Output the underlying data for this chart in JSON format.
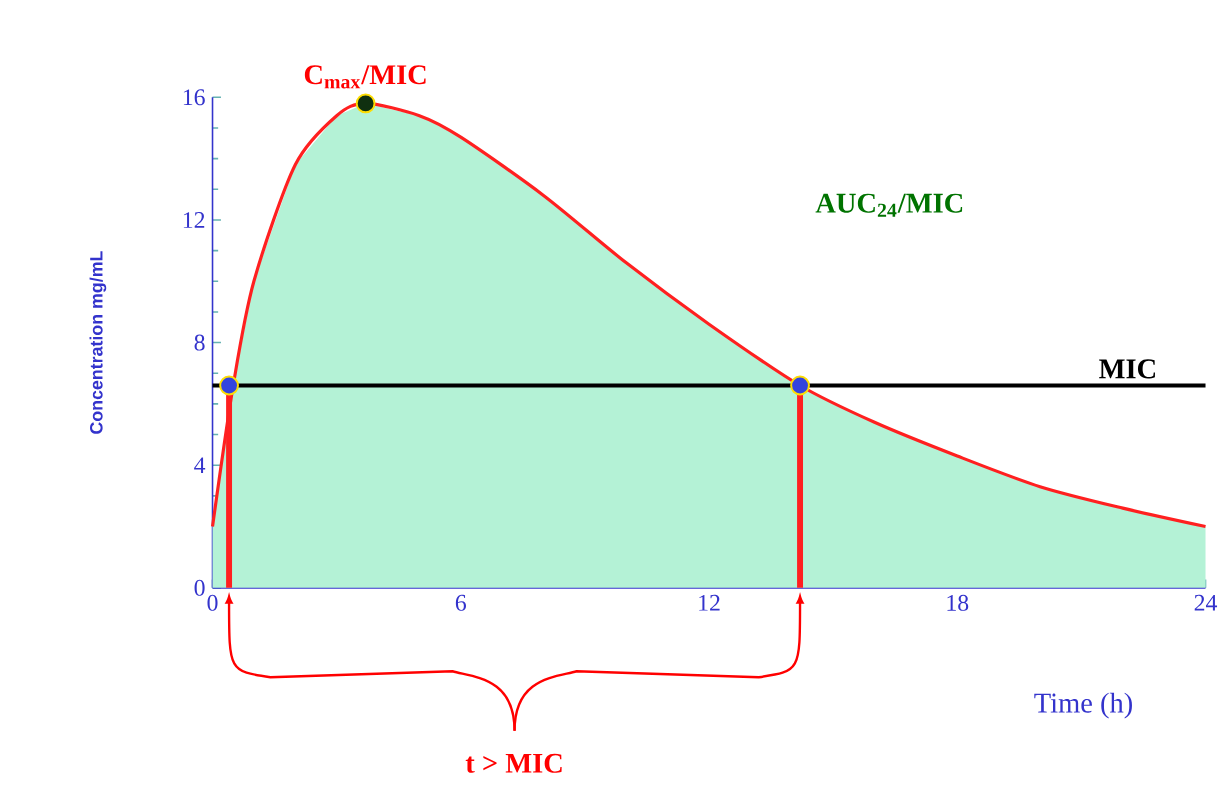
{
  "chart_data": {
    "type": "area",
    "xlabel": "Time (h)",
    "ylabel": "Concentration mg/mL",
    "xlim": [
      0,
      24
    ],
    "ylim": [
      0,
      16
    ],
    "xticks": [
      0,
      6,
      12,
      18,
      24
    ],
    "yticks": [
      0,
      4,
      8,
      12,
      16
    ],
    "series": [
      {
        "color": "#b4f2d6",
        "x": [
          0,
          0.5,
          1,
          2,
          3,
          3.7,
          5,
          6,
          8,
          10,
          12,
          14.2,
          16,
          18,
          20,
          22,
          24
        ],
        "values": [
          2,
          6.6,
          10,
          13.8,
          15.4,
          15.8,
          15.4,
          14.7,
          12.8,
          10.6,
          8.6,
          6.6,
          5.4,
          4.3,
          3.3,
          2.6,
          2
        ]
      },
      {
        "type": "line",
        "color": "#ff2020",
        "x": [
          0,
          0.5,
          1,
          2,
          3,
          3.7,
          5,
          6,
          8,
          10,
          12,
          14.2,
          16,
          18,
          20,
          22,
          24
        ],
        "values": [
          2,
          6.6,
          10,
          13.8,
          15.4,
          15.8,
          15.4,
          14.7,
          12.8,
          10.6,
          8.6,
          6.6,
          5.4,
          4.3,
          3.3,
          2.6,
          2
        ]
      },
      {
        "type": "scatter",
        "color": "#103010",
        "marker": "circle",
        "x": [
          3.7
        ],
        "values": [
          15.8
        ]
      },
      {
        "type": "scatter",
        "color": "#3344dd",
        "marker": "circle",
        "x": [
          0.4,
          14.2
        ],
        "values": [
          6.6,
          6.6
        ]
      }
    ],
    "ref_lines": [
      {
        "axis": "y",
        "value": 6.6,
        "label": "MIC",
        "color": "#000000"
      },
      {
        "axis": "x",
        "value": 0.4,
        "color": "#ff2020"
      },
      {
        "axis": "x",
        "value": 14.2,
        "color": "#ff2020"
      }
    ],
    "annotations": [
      {
        "text": "C$_{max}$/MIC",
        "x": 3.7,
        "y": 15.8
      },
      "AUC$_{24}$/MIC",
      "t > MIC"
    ]
  }
}
